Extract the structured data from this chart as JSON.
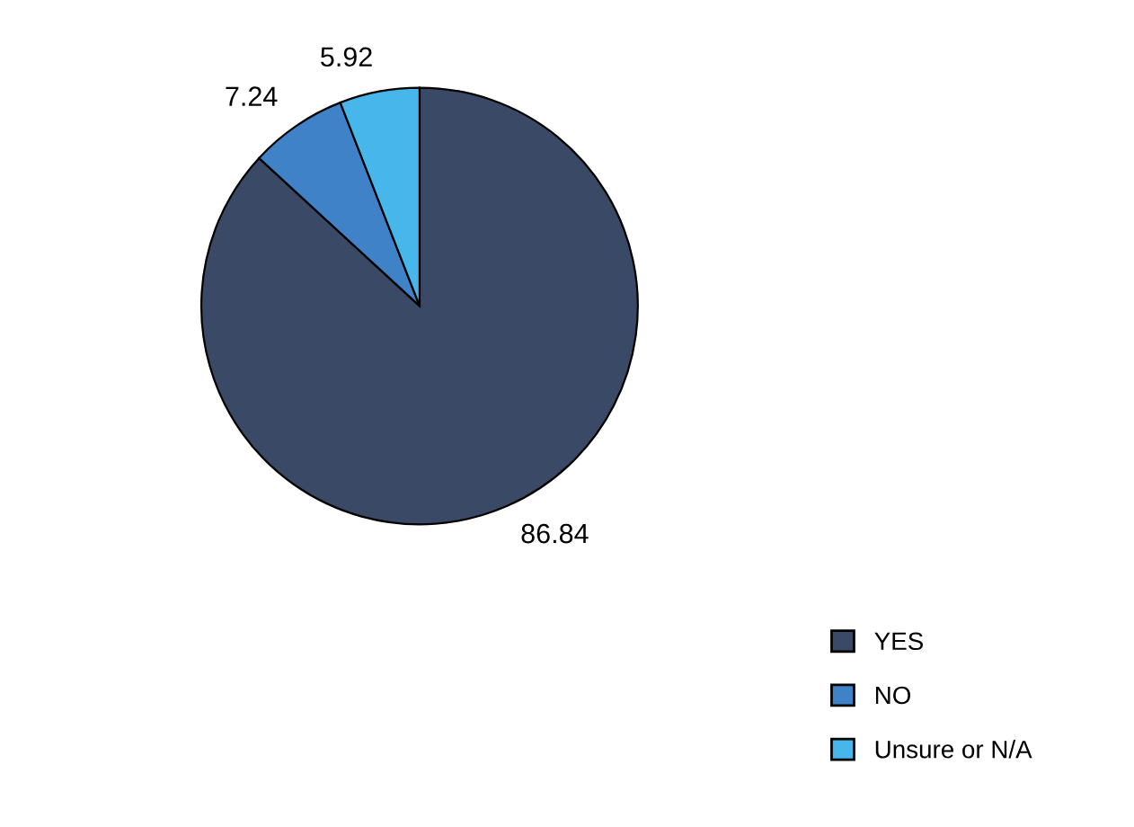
{
  "chart_data": {
    "type": "pie",
    "categories": [
      "YES",
      "NO",
      "Unsure or N/A"
    ],
    "values": [
      86.84,
      7.24,
      5.92
    ],
    "colors": [
      "#3a4a66",
      "#3f82c8",
      "#47b6ea"
    ],
    "data_labels": true,
    "legend": "bottom right"
  }
}
